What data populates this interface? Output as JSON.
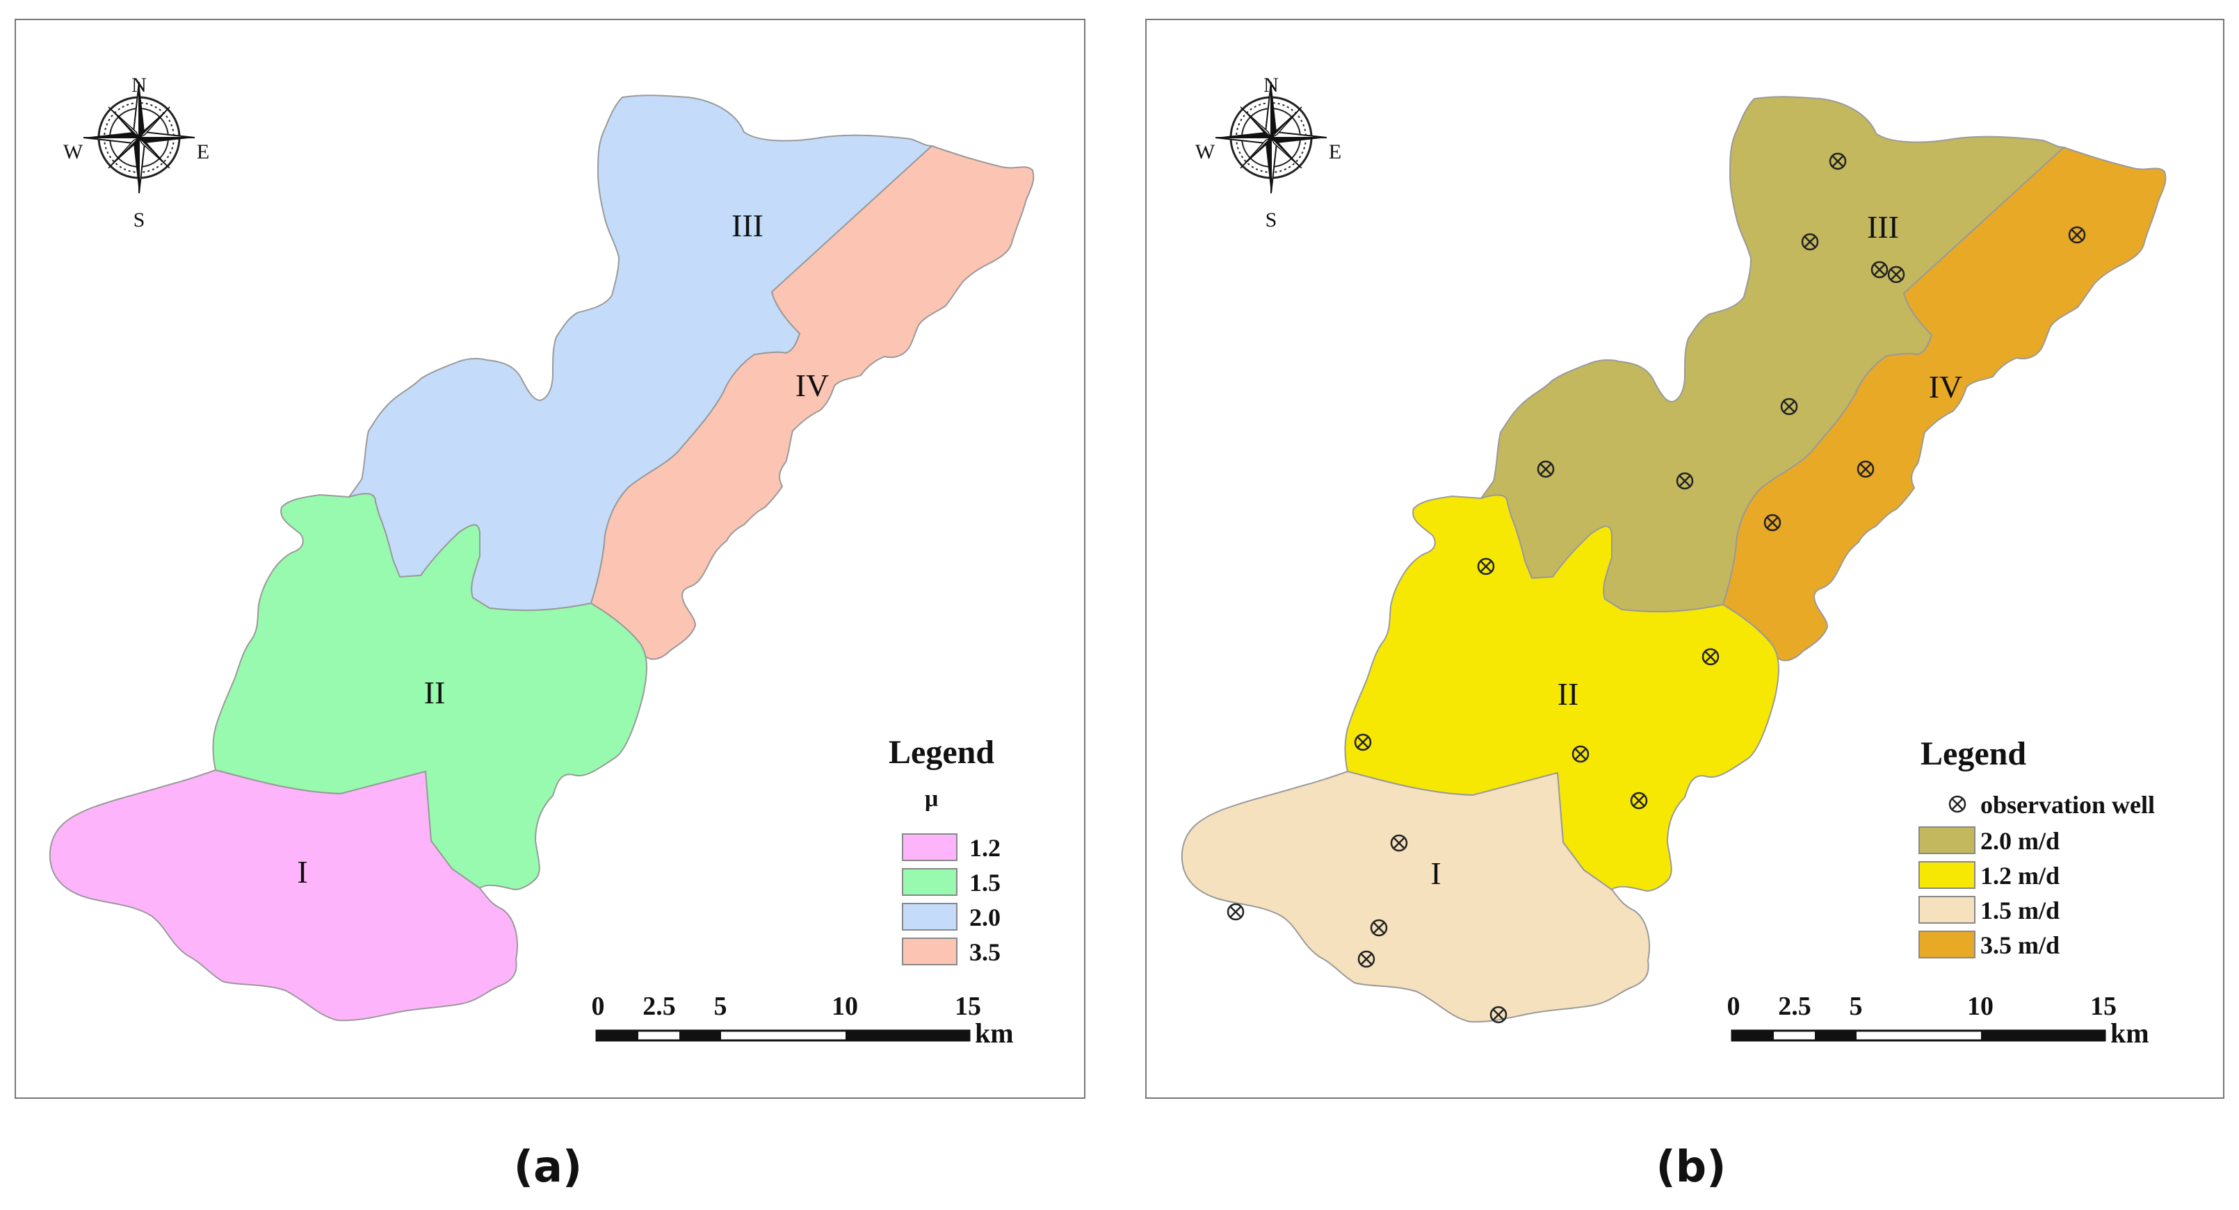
{
  "panels": [
    {
      "id": "a",
      "caption": "(a)",
      "compass": {
        "n": "N",
        "s": "S",
        "e": "E",
        "w": "W"
      },
      "zones": [
        {
          "label": "I",
          "color": "#fdb4fb"
        },
        {
          "label": "II",
          "color": "#97faae"
        },
        {
          "label": "III",
          "color": "#c4dcf9"
        },
        {
          "label": "IV",
          "color": "#fcc4b3"
        }
      ],
      "legend": {
        "title": "Legend",
        "subtitle": "μ",
        "items": [
          {
            "label": "1.2",
            "color": "#fdb4fb"
          },
          {
            "label": "1.5",
            "color": "#97faae"
          },
          {
            "label": "2.0",
            "color": "#c4dcf9"
          },
          {
            "label": "3.5",
            "color": "#fcc4b3"
          }
        ]
      },
      "scale_bar": {
        "ticks": [
          "0",
          "2.5",
          "5",
          "10",
          "15"
        ],
        "unit": "km"
      }
    },
    {
      "id": "b",
      "caption": "(b)",
      "compass": {
        "n": "N",
        "s": "S",
        "e": "E",
        "w": "W"
      },
      "zones": [
        {
          "label": "I",
          "color": "#f5e1be"
        },
        {
          "label": "II",
          "color": "#f7e804"
        },
        {
          "label": "III",
          "color": "#c3b85e"
        },
        {
          "label": "IV",
          "color": "#e8a927"
        }
      ],
      "legend": {
        "title": "Legend",
        "well_label": "observation well",
        "items": [
          {
            "label": "2.0 m/d",
            "color": "#c3b85e"
          },
          {
            "label": "1.2 m/d",
            "color": "#f7e804"
          },
          {
            "label": "1.5 m/d",
            "color": "#f5e1be"
          },
          {
            "label": "3.5 m/d",
            "color": "#e8a927"
          }
        ]
      },
      "scale_bar": {
        "ticks": [
          "0",
          "2.5",
          "5",
          "10",
          "15"
        ],
        "unit": "km"
      },
      "well_count": 20
    }
  ]
}
